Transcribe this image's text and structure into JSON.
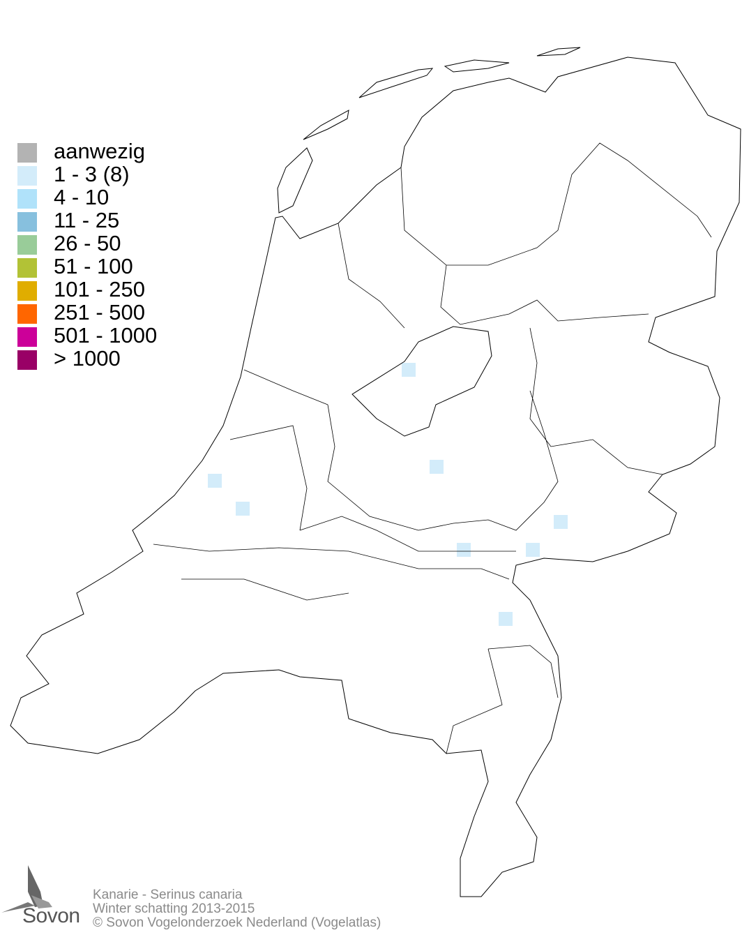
{
  "legend": {
    "items": [
      {
        "label": "aanwezig",
        "color": "#b3b3b3"
      },
      {
        "label": "1 - 3 (8)",
        "color": "#d3ecfa"
      },
      {
        "label": "4 - 10",
        "color": "#b0e2fa"
      },
      {
        "label": "11 - 25",
        "color": "#87c0de"
      },
      {
        "label": "26 - 50",
        "color": "#99cc99"
      },
      {
        "label": "51 - 100",
        "color": "#b2c236"
      },
      {
        "label": "101 - 250",
        "color": "#e0ad00"
      },
      {
        "label": "251 - 500",
        "color": "#ff6600"
      },
      {
        "label": "501 - 1000",
        "color": "#cc0099"
      },
      {
        "label": "> 1000",
        "color": "#990066"
      }
    ]
  },
  "map": {
    "occupied_cells_count": 8,
    "occupied_cells_class": "1 - 3 (8)",
    "cell_color": "#d3ecfa"
  },
  "footer": {
    "species": "Kanarie - Serinus canaria",
    "season": "Winter schatting 2013-2015",
    "copyright": "© Sovon Vogelonderzoek Nederland (Vogelatlas)"
  },
  "logo": {
    "text": "Sovon"
  }
}
